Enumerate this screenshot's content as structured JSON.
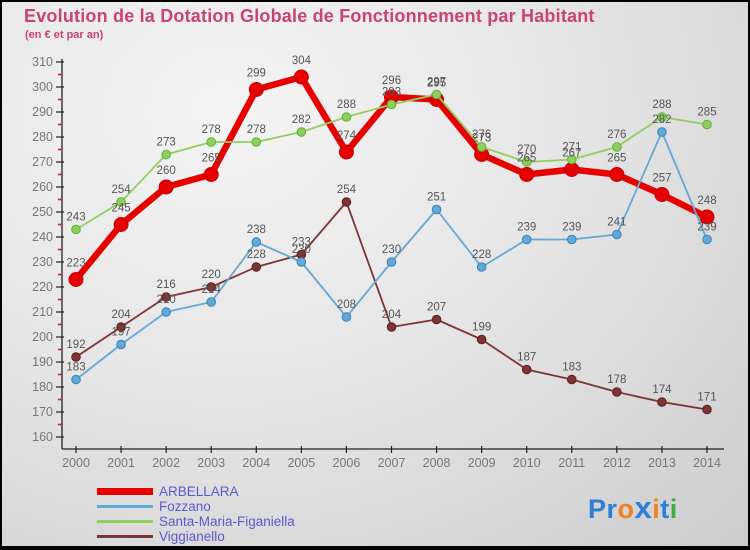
{
  "header": {
    "title": "Evolution de la Dotation Globale de Fonctionnement par Habitant",
    "subtitle": "(en € et par an)",
    "title_color": "#c8446a"
  },
  "chart_data": {
    "type": "line",
    "title": "Evolution de la Dotation Globale de Fonctionnement par Habitant",
    "subtitle": "(en € et par an)",
    "xlabel": "",
    "ylabel": "",
    "x": [
      2000,
      2001,
      2002,
      2003,
      2004,
      2005,
      2006,
      2007,
      2008,
      2009,
      2010,
      2011,
      2012,
      2013,
      2014
    ],
    "ylim": [
      160,
      310
    ],
    "ytick_step": 10,
    "ytick_minor_step": 5,
    "grid": false,
    "legend_position": "bottom-left",
    "data_labels": true,
    "series": [
      {
        "name": "ARBELLARA",
        "color": "#e60000",
        "marker_stroke": "#c40000",
        "emphasis": true,
        "values": [
          223,
          245,
          260,
          265,
          299,
          304,
          274,
          296,
          295,
          273,
          265,
          267,
          265,
          257,
          248
        ]
      },
      {
        "name": "Fozzano",
        "color": "#64a8d8",
        "marker_stroke": "#3584bd",
        "emphasis": false,
        "values": [
          183,
          197,
          210,
          214,
          238,
          230,
          208,
          230,
          251,
          228,
          239,
          239,
          241,
          282,
          239
        ]
      },
      {
        "name": "Santa-Maria-Figaniella",
        "color": "#8ed05e",
        "marker_stroke": "#5fae38",
        "emphasis": false,
        "values": [
          243,
          254,
          273,
          278,
          278,
          282,
          288,
          293,
          297,
          276,
          270,
          271,
          276,
          288,
          285
        ]
      },
      {
        "name": "Viggianello",
        "color": "#7e3434",
        "marker_stroke": "#5e2020",
        "emphasis": false,
        "values": [
          192,
          204,
          216,
          220,
          228,
          233,
          254,
          204,
          207,
          199,
          187,
          183,
          178,
          174,
          171
        ]
      }
    ]
  },
  "legend": {
    "items": [
      "ARBELLARA",
      "Fozzano",
      "Santa-Maria-Figaniella",
      "Viggianello"
    ],
    "text_color": "#5a5ad0"
  },
  "logo": {
    "name": "Proxiti",
    "letters": [
      {
        "ch": "P",
        "color": "#2f7fd6",
        "big": false
      },
      {
        "ch": "r",
        "color": "#2f7fd6",
        "big": false
      },
      {
        "ch": "o",
        "color": "#f08020",
        "big": false
      },
      {
        "ch": "x",
        "color": "#2f7fd6",
        "big": true
      },
      {
        "ch": "i",
        "color": "#f08020",
        "big": false
      },
      {
        "ch": "t",
        "color": "#2f7fd6",
        "big": false
      },
      {
        "ch": "i",
        "color": "#3fae49",
        "big": false
      }
    ]
  }
}
